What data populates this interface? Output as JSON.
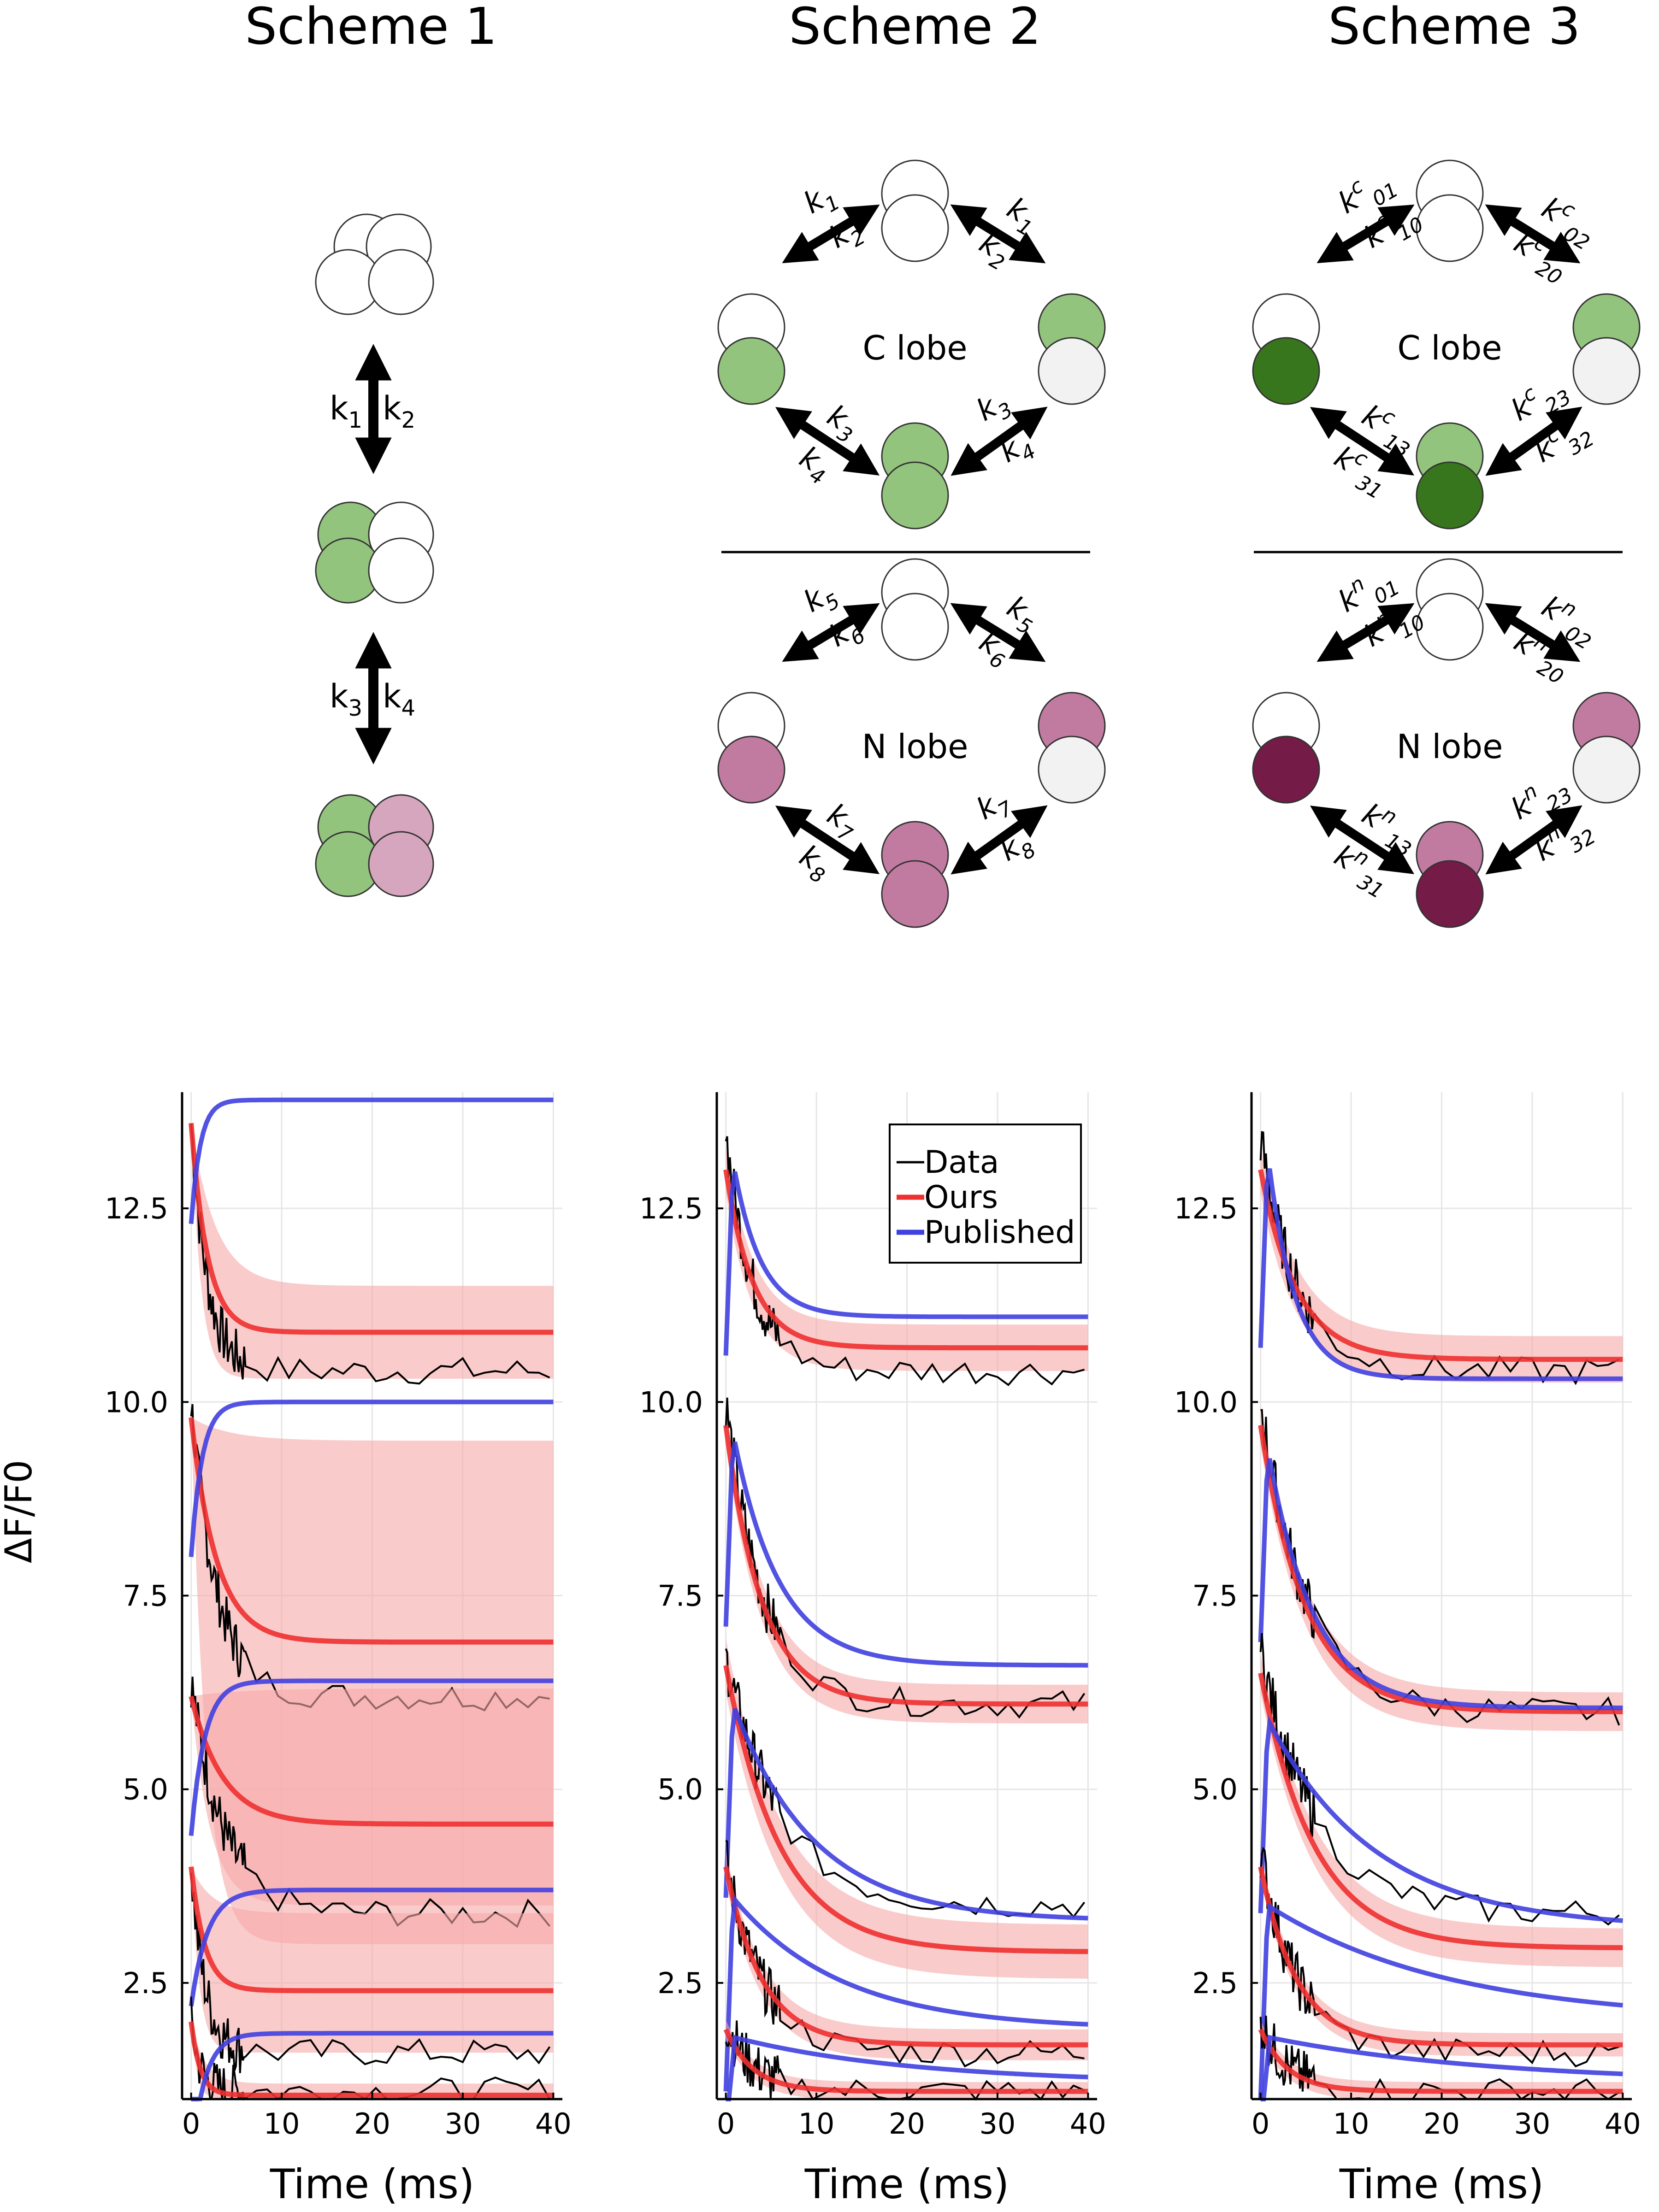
{
  "figure": {
    "column_titles": [
      "Scheme 1",
      "Scheme 2",
      "Scheme 3"
    ]
  },
  "schemes": {
    "scheme1": {
      "rate_labels": [
        "k",
        "1",
        "k",
        "2",
        "k",
        "3",
        "k",
        "4"
      ]
    },
    "scheme2": {
      "c_label": "C lobe",
      "n_label": "N lobe",
      "c_rates": [
        "1",
        "2",
        "1",
        "2",
        "3",
        "4",
        "3",
        "4"
      ],
      "n_rates": [
        "5",
        "6",
        "5",
        "6",
        "7",
        "8",
        "7",
        "8"
      ],
      "k": "k"
    },
    "scheme3": {
      "c_label": "C lobe",
      "n_label": "N lobe",
      "c_sup": "c",
      "n_sup": "n",
      "c_subs": [
        "01",
        "10",
        "02",
        "20",
        "13",
        "31",
        "23",
        "32"
      ],
      "n_subs": [
        "01",
        "10",
        "02",
        "20",
        "13",
        "31",
        "23",
        "32"
      ],
      "k": "k"
    }
  },
  "colors": {
    "data": "#000000",
    "ours": "#ee3030",
    "ours_band": "#f7a9a9",
    "published": "#4040e0",
    "green_light": "#93c47d",
    "green_dark": "#38761d",
    "mauve": "#c27ba0",
    "mauve_light": "#d5a6bd",
    "wine": "#741b47",
    "grey": "#f2f2f2"
  },
  "chart_data": [
    {
      "type": "line",
      "panel": "Scheme 1",
      "xlabel": "Time (ms)",
      "ylabel": "ΔF/F0",
      "xlim": [
        -1,
        41
      ],
      "ylim": [
        1.0,
        14.0
      ],
      "xticks": [
        "0",
        "10",
        "20",
        "30",
        "40"
      ],
      "yticks": [
        "2.5",
        "5.0",
        "7.5",
        "10.0",
        "12.5"
      ],
      "grid": true,
      "traces": [
        {
          "data_start": 13.6,
          "data_end": 10.4,
          "ours_start": 13.6,
          "ours_end": 10.9,
          "ours_tau": 1.8,
          "band_lo": 10.3,
          "band_hi": 11.5,
          "pub_end": 13.9,
          "pub_tau": 1.0
        },
        {
          "data_start": 10.0,
          "data_end": 6.2,
          "ours_start": 9.8,
          "ours_end": 6.9,
          "ours_tau": 2.8,
          "band_lo": 3.0,
          "band_hi": 9.5,
          "pub_end": 10.0,
          "pub_tau": 1.2
        },
        {
          "data_start": 6.4,
          "data_end": 3.4,
          "ours_start": 6.2,
          "ours_end": 4.55,
          "ours_tau": 3.5,
          "band_lo": 3.5,
          "band_hi": 6.3,
          "pub_end": 6.4,
          "pub_tau": 1.5
        },
        {
          "data_start": 4.0,
          "data_end": 1.6,
          "ours_start": 4.0,
          "ours_end": 2.4,
          "ours_tau": 1.5,
          "band_lo": 1.6,
          "band_hi": 3.4,
          "pub_end": 3.7,
          "pub_tau": 1.8
        },
        {
          "data_start": 2.0,
          "data_end": 1.1,
          "ours_start": 2.0,
          "ours_end": 1.05,
          "ours_tau": 1.0,
          "band_lo": 1.0,
          "band_hi": 1.2,
          "pub_end": 1.85,
          "pub_tau": 1.5
        }
      ]
    },
    {
      "type": "line",
      "panel": "Scheme 2",
      "xlabel": "Time (ms)",
      "ylabel": "",
      "xlim": [
        -1,
        41
      ],
      "ylim": [
        1.0,
        14.0
      ],
      "xticks": [
        "0",
        "10",
        "20",
        "30",
        "40"
      ],
      "yticks": [
        "2.5",
        "5.0",
        "7.5",
        "10.0",
        "12.5"
      ],
      "grid": true,
      "legend": {
        "position": "top-right",
        "entries": [
          "Data",
          "Ours",
          "Published"
        ]
      },
      "traces": [
        {
          "data_start": 13.5,
          "data_end": 10.4,
          "ours_start": 13.0,
          "ours_end": 10.7,
          "ours_tau": 3.0,
          "band_w": 0.3,
          "pub_peak": 13.1,
          "pub_end": 11.1,
          "pub_tau": 3.0
        },
        {
          "data_start": 10.0,
          "data_end": 6.1,
          "ours_start": 9.7,
          "ours_end": 6.1,
          "ours_tau": 4.0,
          "band_w": 0.25,
          "pub_peak": 9.6,
          "pub_end": 6.6,
          "pub_tau": 5.0
        },
        {
          "data_start": 6.7,
          "data_end": 3.5,
          "ours_start": 6.6,
          "ours_end": 2.9,
          "ours_tau": 6.0,
          "band_w": 0.35,
          "pub_peak": 6.1,
          "pub_end": 3.3,
          "pub_tau": 9.0
        },
        {
          "data_start": 4.1,
          "data_end": 1.6,
          "ours_start": 4.0,
          "ours_end": 1.7,
          "ours_tau": 4.0,
          "band_w": 0.2,
          "pub_peak": 3.6,
          "pub_end": 1.9,
          "pub_tau": 12.0
        },
        {
          "data_start": 2.0,
          "data_end": 1.1,
          "ours_start": 1.9,
          "ours_end": 1.1,
          "ours_tau": 3.0,
          "band_w": 0.12,
          "pub_peak": 1.8,
          "pub_end": 1.2,
          "pub_tau": 20.0
        }
      ]
    },
    {
      "type": "line",
      "panel": "Scheme 3",
      "xlabel": "Time (ms)",
      "ylabel": "",
      "xlim": [
        -1,
        41
      ],
      "ylim": [
        1.0,
        14.0
      ],
      "xticks": [
        "0",
        "10",
        "20",
        "30",
        "40"
      ],
      "yticks": [
        "2.5",
        "5.0",
        "7.5",
        "10.0",
        "12.5"
      ],
      "grid": true,
      "traces": [
        {
          "data_start": 13.4,
          "data_end": 10.4,
          "ours_start": 13.0,
          "ours_end": 10.55,
          "ours_tau": 4.0,
          "band_w": 0.3,
          "pub_peak": 13.2,
          "pub_end": 10.3,
          "pub_tau": 3.0
        },
        {
          "data_start": 10.0,
          "data_end": 6.0,
          "ours_start": 9.7,
          "ours_end": 6.0,
          "ours_tau": 5.0,
          "band_w": 0.25,
          "pub_peak": 9.4,
          "pub_end": 6.05,
          "pub_tau": 5.0
        },
        {
          "data_start": 6.8,
          "data_end": 3.4,
          "ours_start": 6.5,
          "ours_end": 2.95,
          "ours_tau": 6.0,
          "band_w": 0.25,
          "pub_peak": 5.9,
          "pub_end": 3.2,
          "pub_tau": 12.0
        },
        {
          "data_start": 4.2,
          "data_end": 1.6,
          "ours_start": 4.0,
          "ours_end": 1.7,
          "ours_tau": 4.0,
          "band_w": 0.15,
          "pub_peak": 3.5,
          "pub_end": 2.0,
          "pub_tau": 20.0
        },
        {
          "data_start": 2.0,
          "data_end": 1.1,
          "ours_start": 1.9,
          "ours_end": 1.1,
          "ours_tau": 3.0,
          "band_w": 0.12,
          "pub_peak": 1.8,
          "pub_end": 1.2,
          "pub_tau": 25.0
        }
      ]
    }
  ]
}
